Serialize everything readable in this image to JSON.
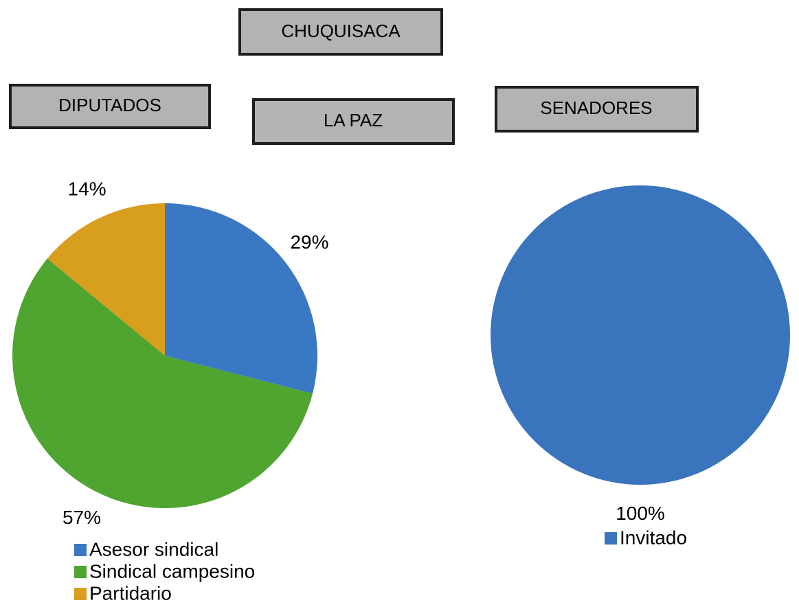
{
  "header_boxes": [
    "CHUQUISACA",
    "DIPUTADOS",
    "LA PAZ",
    "SENADORES"
  ],
  "chart_data": [
    {
      "type": "pie",
      "categories": [
        "Asesor sindical",
        "Sindical campesino",
        "Partidario"
      ],
      "values": [
        29,
        57,
        14
      ],
      "value_labels": [
        "29%",
        "57%",
        "14%"
      ],
      "colors": [
        "#3b78c4",
        "#4fa52f",
        "#d89e1e"
      ]
    },
    {
      "type": "pie",
      "categories": [
        "Invitado"
      ],
      "values": [
        100
      ],
      "value_labels": [
        "100%"
      ],
      "colors": [
        "#3a74bd"
      ]
    }
  ]
}
